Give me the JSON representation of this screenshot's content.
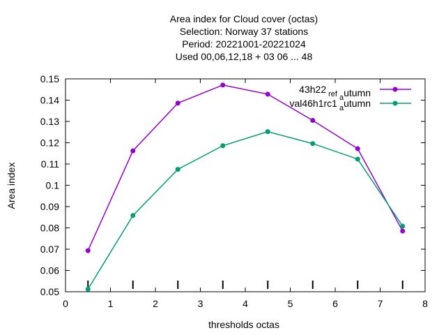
{
  "chart_data": {
    "type": "line",
    "title_lines": [
      "Area index  for Cloud cover (octas)",
      "Selection: Norway     37 stations",
      "Period: 20221001-20221024",
      "Used  00,06,12,18  + 03 06 ... 48"
    ],
    "xlabel": "thresholds octas",
    "ylabel": "Area index",
    "xlim": [
      0,
      8
    ],
    "ylim": [
      0.05,
      0.15
    ],
    "xticks": [
      "0",
      "1",
      "2",
      "3",
      "4",
      "5",
      "6",
      "7",
      "8"
    ],
    "yticks": [
      "0.05",
      "0.06",
      "0.07",
      "0.08",
      "0.09",
      "0.1",
      "0.11",
      "0.12",
      "0.13",
      "0.14",
      "0.15"
    ],
    "x": [
      0.5,
      1.5,
      2.5,
      3.5,
      4.5,
      5.5,
      6.5,
      7.5
    ],
    "series": [
      {
        "name": "43h22_ref_autumn",
        "name_parts": [
          "43h22",
          "ref",
          "a",
          "utumn"
        ],
        "color": "#9400d3",
        "values": [
          0.0693,
          0.1162,
          0.1386,
          0.1471,
          0.1428,
          0.1305,
          0.1172,
          0.0785
        ]
      },
      {
        "name": "val46h1rc1_autumn",
        "name_parts": [
          "val46h1rc1",
          "",
          "a",
          "utumn"
        ],
        "color": "#009e73",
        "values": [
          0.0512,
          0.0858,
          0.1075,
          0.1186,
          0.1252,
          0.1196,
          0.1123,
          0.0808
        ]
      }
    ],
    "grid": false,
    "legend_position": "top-right"
  }
}
